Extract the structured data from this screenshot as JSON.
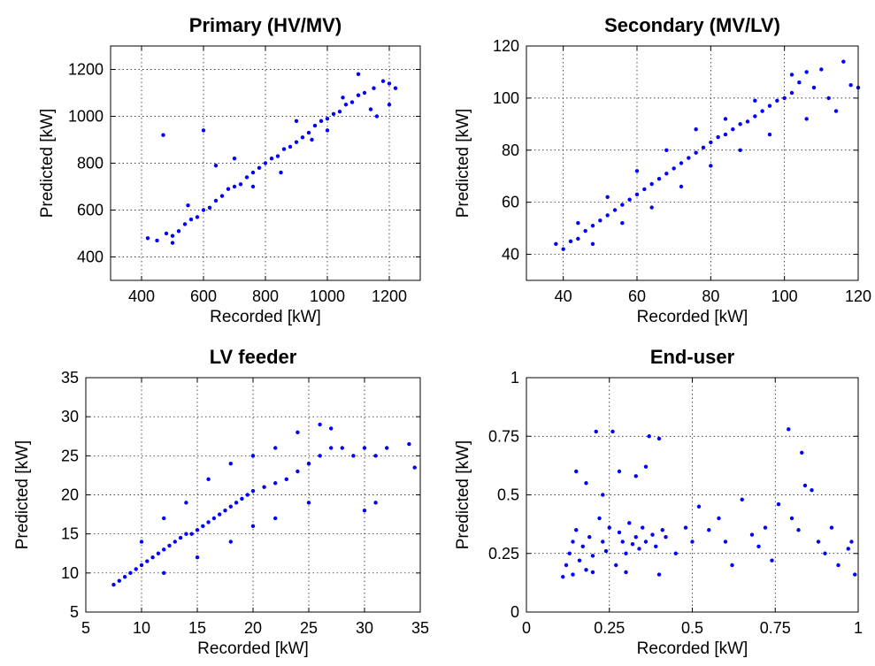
{
  "chart_data": [
    {
      "type": "scatter",
      "title": "Primary (HV/MV)",
      "xlabel": "Recorded [kW]",
      "ylabel": "Predicted [kW]",
      "xlim": [
        300,
        1300
      ],
      "ylim": [
        300,
        1300
      ],
      "xticks": [
        400,
        600,
        800,
        1000,
        1200
      ],
      "yticks": [
        400,
        600,
        800,
        1000,
        1200
      ],
      "grid": true,
      "marker_color": "#0000ff",
      "series": [
        {
          "points": [
            [
              420,
              480
            ],
            [
              450,
              470
            ],
            [
              480,
              500
            ],
            [
              500,
              490
            ],
            [
              520,
              510
            ],
            [
              540,
              540
            ],
            [
              560,
              560
            ],
            [
              580,
              570
            ],
            [
              600,
              600
            ],
            [
              620,
              610
            ],
            [
              640,
              640
            ],
            [
              660,
              660
            ],
            [
              680,
              690
            ],
            [
              700,
              700
            ],
            [
              720,
              710
            ],
            [
              740,
              740
            ],
            [
              760,
              760
            ],
            [
              780,
              780
            ],
            [
              800,
              800
            ],
            [
              820,
              820
            ],
            [
              840,
              830
            ],
            [
              860,
              860
            ],
            [
              880,
              870
            ],
            [
              900,
              890
            ],
            [
              920,
              910
            ],
            [
              940,
              930
            ],
            [
              960,
              960
            ],
            [
              980,
              980
            ],
            [
              1000,
              990
            ],
            [
              1020,
              1010
            ],
            [
              1040,
              1020
            ],
            [
              1060,
              1050
            ],
            [
              1080,
              1060
            ],
            [
              1100,
              1090
            ],
            [
              1120,
              1100
            ],
            [
              1150,
              1120
            ],
            [
              1180,
              1150
            ],
            [
              1200,
              1140
            ],
            [
              1220,
              1120
            ],
            [
              470,
              920
            ],
            [
              600,
              940
            ],
            [
              640,
              790
            ],
            [
              500,
              460
            ],
            [
              550,
              620
            ],
            [
              700,
              820
            ],
            [
              760,
              700
            ],
            [
              850,
              760
            ],
            [
              900,
              980
            ],
            [
              950,
              900
            ],
            [
              1000,
              940
            ],
            [
              1050,
              1080
            ],
            [
              1100,
              1180
            ],
            [
              1140,
              1030
            ],
            [
              1160,
              1000
            ],
            [
              1200,
              1050
            ]
          ]
        }
      ]
    },
    {
      "type": "scatter",
      "title": "Secondary (MV/LV)",
      "xlabel": "Recorded [kW]",
      "ylabel": "Predicted [kW]",
      "xlim": [
        30,
        120
      ],
      "ylim": [
        30,
        120
      ],
      "xticks": [
        40,
        60,
        80,
        100,
        120
      ],
      "yticks": [
        40,
        60,
        80,
        100,
        120
      ],
      "grid": true,
      "marker_color": "#0000ff",
      "series": [
        {
          "points": [
            [
              38,
              44
            ],
            [
              40,
              42
            ],
            [
              42,
              45
            ],
            [
              44,
              46
            ],
            [
              46,
              49
            ],
            [
              48,
              51
            ],
            [
              50,
              53
            ],
            [
              52,
              55
            ],
            [
              54,
              57
            ],
            [
              56,
              59
            ],
            [
              58,
              61
            ],
            [
              60,
              63
            ],
            [
              62,
              65
            ],
            [
              64,
              67
            ],
            [
              66,
              69
            ],
            [
              68,
              71
            ],
            [
              70,
              73
            ],
            [
              72,
              75
            ],
            [
              74,
              77
            ],
            [
              76,
              79
            ],
            [
              78,
              81
            ],
            [
              80,
              83
            ],
            [
              82,
              85
            ],
            [
              84,
              86
            ],
            [
              86,
              88
            ],
            [
              88,
              90
            ],
            [
              90,
              91
            ],
            [
              92,
              93
            ],
            [
              94,
              95
            ],
            [
              96,
              97
            ],
            [
              98,
              99
            ],
            [
              100,
              100
            ],
            [
              102,
              102
            ],
            [
              104,
              106
            ],
            [
              106,
              110
            ],
            [
              108,
              104
            ],
            [
              110,
              111
            ],
            [
              112,
              100
            ],
            [
              114,
              95
            ],
            [
              116,
              114
            ],
            [
              118,
              105
            ],
            [
              120,
              104
            ],
            [
              44,
              52
            ],
            [
              48,
              44
            ],
            [
              52,
              62
            ],
            [
              56,
              52
            ],
            [
              60,
              72
            ],
            [
              64,
              58
            ],
            [
              68,
              80
            ],
            [
              72,
              66
            ],
            [
              76,
              88
            ],
            [
              80,
              74
            ],
            [
              84,
              92
            ],
            [
              88,
              80
            ],
            [
              92,
              99
            ],
            [
              96,
              86
            ],
            [
              102,
              109
            ],
            [
              106,
              92
            ]
          ]
        }
      ]
    },
    {
      "type": "scatter",
      "title": "LV feeder",
      "xlabel": "Recorded [kW]",
      "ylabel": "Predicted [kW]",
      "xlim": [
        5,
        35
      ],
      "ylim": [
        5,
        35
      ],
      "xticks": [
        5,
        10,
        15,
        20,
        25,
        30,
        35
      ],
      "yticks": [
        5,
        10,
        15,
        20,
        25,
        30,
        35
      ],
      "grid": true,
      "marker_color": "#0000ff",
      "series": [
        {
          "points": [
            [
              7.5,
              8.5
            ],
            [
              8,
              9
            ],
            [
              8.5,
              9.5
            ],
            [
              9,
              10
            ],
            [
              9.5,
              10.5
            ],
            [
              10,
              11
            ],
            [
              10.5,
              11.5
            ],
            [
              11,
              12
            ],
            [
              11.5,
              12.5
            ],
            [
              12,
              13
            ],
            [
              12.5,
              13.5
            ],
            [
              13,
              14
            ],
            [
              13.5,
              14.5
            ],
            [
              14,
              15
            ],
            [
              14.5,
              15
            ],
            [
              15,
              15.5
            ],
            [
              15.5,
              16
            ],
            [
              16,
              16.5
            ],
            [
              16.5,
              17
            ],
            [
              17,
              17.5
            ],
            [
              17.5,
              18
            ],
            [
              18,
              18.5
            ],
            [
              18.5,
              19
            ],
            [
              19,
              19.5
            ],
            [
              19.5,
              20
            ],
            [
              20,
              20.5
            ],
            [
              21,
              21
            ],
            [
              22,
              21.5
            ],
            [
              23,
              22
            ],
            [
              24,
              23
            ],
            [
              25,
              24
            ],
            [
              26,
              25
            ],
            [
              27,
              26
            ],
            [
              28,
              26
            ],
            [
              29,
              25
            ],
            [
              30,
              26
            ],
            [
              31,
              25
            ],
            [
              32,
              26
            ],
            [
              34,
              26.5
            ],
            [
              34.5,
              23.5
            ],
            [
              30,
              18
            ],
            [
              31,
              19
            ],
            [
              24,
              28
            ],
            [
              26,
              29
            ],
            [
              27,
              28.5
            ],
            [
              10,
              14
            ],
            [
              12,
              17
            ],
            [
              14,
              19
            ],
            [
              16,
              22
            ],
            [
              18,
              24
            ],
            [
              20,
              25
            ],
            [
              22,
              26
            ],
            [
              12,
              10
            ],
            [
              15,
              12
            ],
            [
              18,
              14
            ],
            [
              20,
              16
            ],
            [
              22,
              17
            ],
            [
              25,
              19
            ]
          ]
        }
      ]
    },
    {
      "type": "scatter",
      "title": "End-user",
      "xlabel": "Recorded [kW]",
      "ylabel": "Predicted [kW]",
      "xlim": [
        0,
        1
      ],
      "ylim": [
        0,
        1
      ],
      "xticks": [
        "0",
        "0.25",
        "0.5",
        "0.75",
        "1"
      ],
      "yticks": [
        "0",
        "0.25",
        "0.5",
        "0.75",
        "1"
      ],
      "grid": true,
      "marker_color": "#0000ff",
      "series": [
        {
          "points": [
            [
              0.11,
              0.15
            ],
            [
              0.12,
              0.2
            ],
            [
              0.13,
              0.25
            ],
            [
              0.14,
              0.3
            ],
            [
              0.15,
              0.35
            ],
            [
              0.16,
              0.22
            ],
            [
              0.17,
              0.28
            ],
            [
              0.18,
              0.18
            ],
            [
              0.19,
              0.32
            ],
            [
              0.2,
              0.24
            ],
            [
              0.21,
              0.77
            ],
            [
              0.22,
              0.4
            ],
            [
              0.23,
              0.3
            ],
            [
              0.24,
              0.26
            ],
            [
              0.25,
              0.36
            ],
            [
              0.26,
              0.77
            ],
            [
              0.27,
              0.2
            ],
            [
              0.28,
              0.34
            ],
            [
              0.29,
              0.3
            ],
            [
              0.3,
              0.25
            ],
            [
              0.31,
              0.38
            ],
            [
              0.32,
              0.29
            ],
            [
              0.33,
              0.32
            ],
            [
              0.34,
              0.27
            ],
            [
              0.35,
              0.36
            ],
            [
              0.36,
              0.3
            ],
            [
              0.37,
              0.75
            ],
            [
              0.38,
              0.33
            ],
            [
              0.39,
              0.28
            ],
            [
              0.4,
              0.74
            ],
            [
              0.41,
              0.35
            ],
            [
              0.42,
              0.32
            ],
            [
              0.45,
              0.25
            ],
            [
              0.48,
              0.36
            ],
            [
              0.5,
              0.3
            ],
            [
              0.52,
              0.45
            ],
            [
              0.55,
              0.35
            ],
            [
              0.58,
              0.4
            ],
            [
              0.6,
              0.3
            ],
            [
              0.62,
              0.2
            ],
            [
              0.65,
              0.48
            ],
            [
              0.68,
              0.33
            ],
            [
              0.7,
              0.28
            ],
            [
              0.72,
              0.36
            ],
            [
              0.74,
              0.22
            ],
            [
              0.76,
              0.46
            ],
            [
              0.79,
              0.78
            ],
            [
              0.8,
              0.4
            ],
            [
              0.82,
              0.35
            ],
            [
              0.83,
              0.68
            ],
            [
              0.84,
              0.54
            ],
            [
              0.86,
              0.52
            ],
            [
              0.88,
              0.3
            ],
            [
              0.9,
              0.25
            ],
            [
              0.92,
              0.36
            ],
            [
              0.94,
              0.2
            ],
            [
              0.98,
              0.3
            ],
            [
              0.99,
              0.16
            ],
            [
              0.97,
              0.27
            ],
            [
              0.15,
              0.6
            ],
            [
              0.18,
              0.55
            ],
            [
              0.23,
              0.5
            ],
            [
              0.28,
              0.6
            ],
            [
              0.33,
              0.58
            ],
            [
              0.36,
              0.62
            ],
            [
              0.14,
              0.16
            ],
            [
              0.2,
              0.17
            ],
            [
              0.3,
              0.17
            ],
            [
              0.4,
              0.16
            ]
          ]
        }
      ]
    }
  ]
}
